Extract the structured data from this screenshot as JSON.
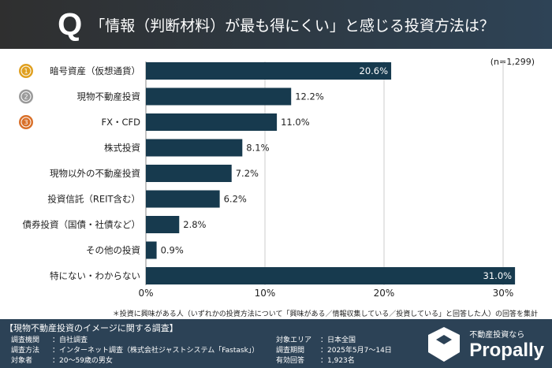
{
  "header": {
    "q": "Q",
    "title": "「情報（判断材料）が最も得にくい」と感じる投資方法は？"
  },
  "sample": "(n=1,299)",
  "chart_data": {
    "type": "bar",
    "orientation": "horizontal",
    "categories": [
      "暗号資産（仮想通貨）",
      "現物不動産投資",
      "FX・CFD",
      "株式投資",
      "現物以外の不動産投資",
      "投資信託（REIT含む）",
      "債券投資（国債・社債など）",
      "その他の投資",
      "特にない・わからない"
    ],
    "values": [
      20.6,
      12.2,
      11.0,
      8.1,
      7.2,
      6.2,
      2.8,
      0.9,
      31.0
    ],
    "value_labels": [
      "20.6%",
      "12.2%",
      "11.0%",
      "8.1%",
      "7.2%",
      "6.2%",
      "2.8%",
      "0.9%",
      "31.0%"
    ],
    "ranks": [
      "1",
      "2",
      "3"
    ],
    "xlim": [
      0,
      32
    ],
    "xticks": [
      0,
      10,
      20,
      30
    ],
    "xtick_labels": [
      "0%",
      "10%",
      "20%",
      "30%"
    ],
    "bar_color": "#173a4e",
    "medal_colors": [
      "#e0a020",
      "#9a9a9a",
      "#d9702a"
    ]
  },
  "note": "＊投資に興味がある人（いずれかの投資方法について「興味がある／情報収集している／投資している」と回答した人）の回答を集計",
  "footer": {
    "title": "【現物不動産投資のイメージに関する調査】",
    "rows": [
      {
        "k": "調査機関",
        "v": "：自社調査"
      },
      {
        "k": "調査方法",
        "v": "：インターネット調査（株式会社ジャストシステム「Fastask」）"
      },
      {
        "k": "対象者",
        "v": "：20～59歳の男女"
      },
      {
        "k": "対象エリア",
        "v": "：日本全国"
      },
      {
        "k": "調査期間",
        "v": "：2025年5月7～14日"
      },
      {
        "k": "有効回答",
        "v": "：1,923名"
      }
    ],
    "logo_sub": "不動産投資なら",
    "logo_name": "Propally"
  }
}
